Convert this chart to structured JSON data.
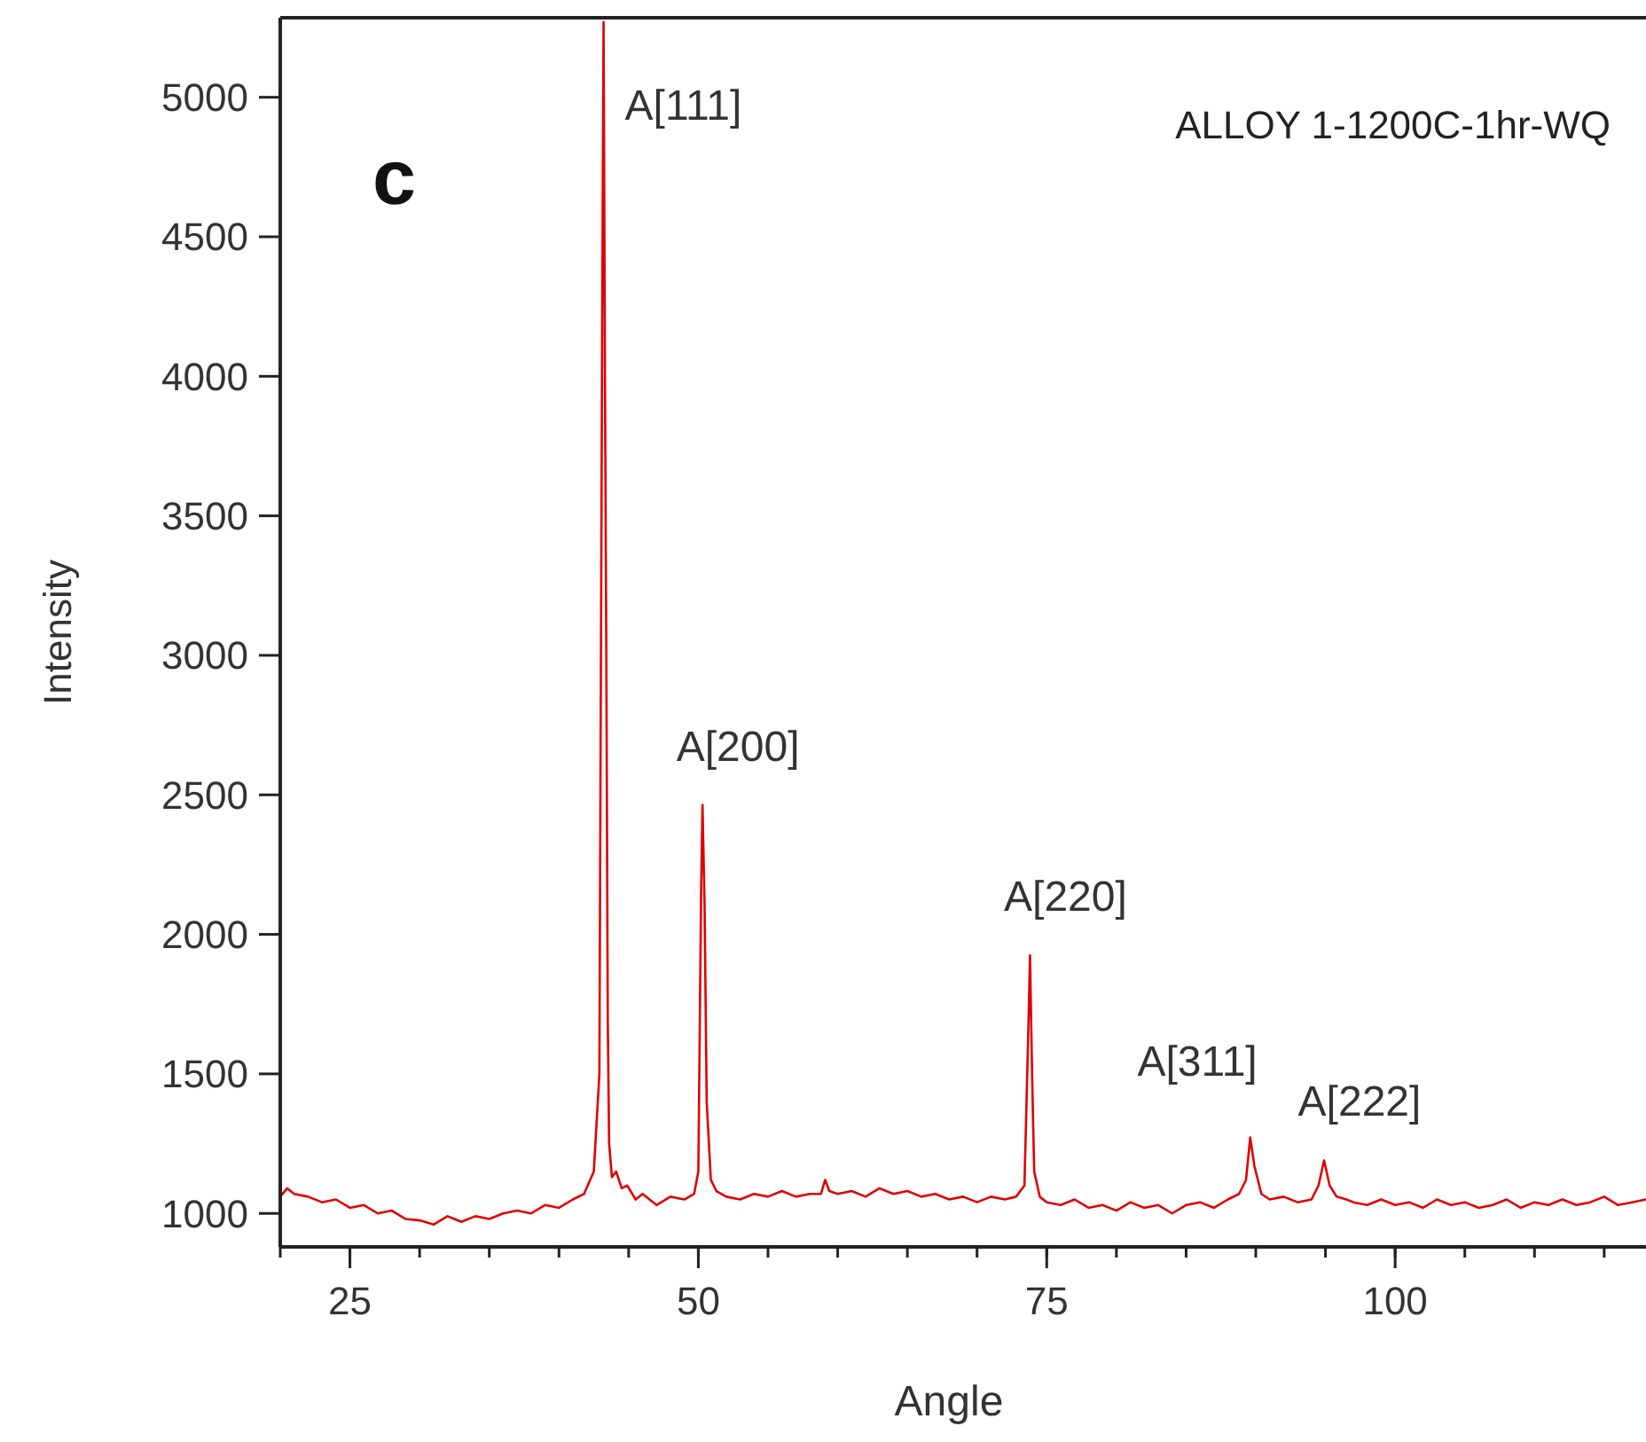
{
  "chart_data": {
    "type": "line",
    "title": "ALLOY 1-1200C-1hr-WQ",
    "xlabel": "Angle",
    "ylabel": "Intensity",
    "xlim": [
      20,
      118
    ],
    "ylim": [
      880,
      5285
    ],
    "xticks": [
      25,
      50,
      75,
      100
    ],
    "yticks": [
      1000,
      1500,
      2000,
      2500,
      3000,
      3500,
      4000,
      4500,
      5000
    ],
    "line_style": "solid",
    "grid": false,
    "annotations": [
      "c",
      {
        "text": "A[111]",
        "x": 43.2,
        "y": 5270
      },
      {
        "text": "A[200]",
        "x": 50.3,
        "y": 2464
      },
      {
        "text": "A[220]",
        "x": 73.8,
        "y": 1925
      },
      {
        "text": "A[311]",
        "x": 89.6,
        "y": 1272
      },
      {
        "text": "A[222]",
        "x": 94.9,
        "y": 1190
      }
    ],
    "series": [
      {
        "color": "#e00000",
        "x": [
          20,
          20.5,
          21,
          22,
          23,
          24,
          25,
          26,
          27,
          28,
          29,
          30,
          31,
          32,
          33,
          34,
          35,
          36,
          37,
          38,
          39,
          40,
          41,
          41.8,
          42.5,
          42.9,
          43.1,
          43.2,
          43.3,
          43.4,
          43.5,
          43.6,
          43.8,
          44.1,
          44.5,
          44.9,
          45.5,
          46,
          47,
          48,
          49,
          49.7,
          50.0,
          50.2,
          50.3,
          50.45,
          50.6,
          50.9,
          51.3,
          52,
          53,
          54,
          55,
          56,
          57,
          58,
          58.8,
          59.1,
          59.4,
          60,
          61,
          62,
          63,
          64,
          65,
          66,
          67,
          68,
          69,
          70,
          71,
          72,
          72.8,
          73.4,
          73.7,
          73.8,
          73.95,
          74.1,
          74.5,
          75,
          76,
          77,
          78,
          79,
          80,
          81,
          82,
          83,
          84,
          85,
          86,
          87,
          88,
          88.8,
          89.3,
          89.6,
          89.9,
          90.4,
          91,
          92,
          93,
          94,
          94.5,
          94.9,
          95.3,
          95.8,
          96.5,
          97,
          98,
          99,
          100,
          101,
          102,
          103,
          104,
          105,
          106,
          107,
          108,
          109,
          110,
          111,
          112,
          113,
          114,
          115,
          116,
          117,
          118
        ],
        "values": [
          1060,
          1090,
          1070,
          1060,
          1040,
          1050,
          1020,
          1030,
          1000,
          1010,
          980,
          975,
          960,
          990,
          970,
          990,
          980,
          1000,
          1010,
          1000,
          1030,
          1020,
          1050,
          1070,
          1150,
          1500,
          4180,
          5270,
          4000,
          2980,
          1700,
          1250,
          1130,
          1150,
          1090,
          1100,
          1050,
          1070,
          1030,
          1060,
          1050,
          1070,
          1150,
          2150,
          2464,
          2100,
          1400,
          1120,
          1080,
          1060,
          1050,
          1070,
          1060,
          1080,
          1060,
          1070,
          1070,
          1120,
          1080,
          1070,
          1080,
          1060,
          1090,
          1070,
          1080,
          1060,
          1070,
          1050,
          1060,
          1040,
          1060,
          1050,
          1060,
          1100,
          1700,
          1925,
          1500,
          1150,
          1060,
          1040,
          1030,
          1050,
          1020,
          1030,
          1010,
          1040,
          1020,
          1030,
          1000,
          1030,
          1040,
          1020,
          1050,
          1070,
          1120,
          1272,
          1170,
          1070,
          1050,
          1060,
          1040,
          1050,
          1100,
          1190,
          1100,
          1060,
          1050,
          1040,
          1030,
          1050,
          1030,
          1040,
          1020,
          1050,
          1030,
          1040,
          1020,
          1030,
          1050,
          1020,
          1040,
          1030,
          1050,
          1030,
          1040,
          1060,
          1030,
          1040,
          1050
        ]
      }
    ]
  }
}
